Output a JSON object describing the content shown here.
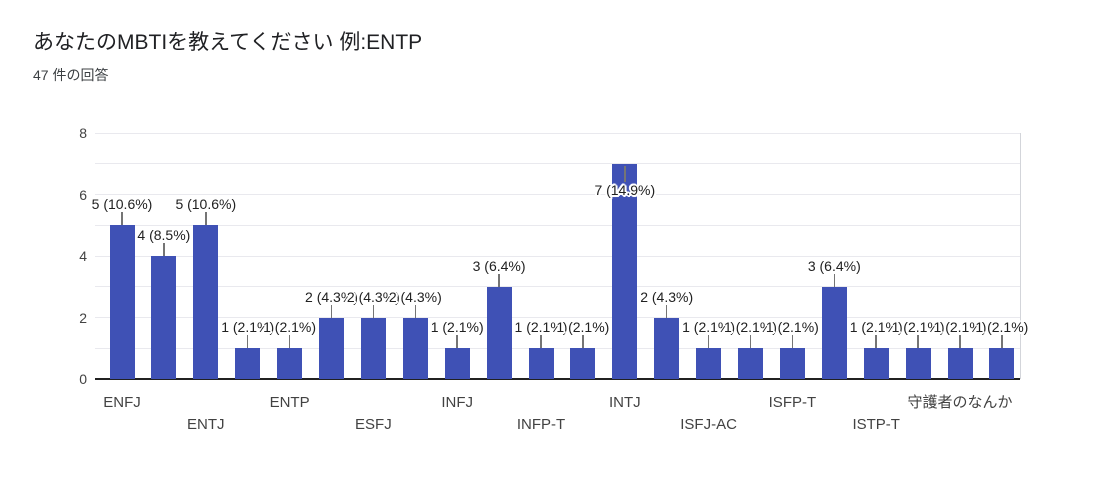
{
  "header": {
    "title": "あなたのMBTIを教えてください 例:ENTP",
    "subtitle": "47 件の回答"
  },
  "chart_data": {
    "type": "bar",
    "title": "あなたのMBTIを教えてください 例:ENTP",
    "subtitle": "47 件の回答",
    "total_responses": 47,
    "ylim": [
      0,
      8
    ],
    "y_ticks": [
      0,
      2,
      4,
      6,
      8
    ],
    "gridline_step": 1,
    "legend": "none",
    "x_tick_visible_labels": [
      "ENFJ",
      "ENTJ",
      "ENTP",
      "ESFJ",
      "INFJ",
      "INFP-T",
      "INTJ",
      "ISFJ-AC",
      "ISFP-T",
      "ISTP-T",
      "守護者のなんか"
    ],
    "bars": [
      {
        "value": 5,
        "annotation": "5 (10.6%)",
        "category": "ENFJ",
        "category_row": 1,
        "annotation_position": "above"
      },
      {
        "value": 4,
        "annotation": "4 (8.5%)",
        "category": null,
        "category_row": null,
        "annotation_position": "above"
      },
      {
        "value": 5,
        "annotation": "5 (10.6%)",
        "category": "ENTJ",
        "category_row": 2,
        "annotation_position": "above"
      },
      {
        "value": 1,
        "annotation": "1 (2.1%)",
        "category": null,
        "category_row": null,
        "annotation_position": "above"
      },
      {
        "value": 1,
        "annotation": "1 (2.1%)",
        "category": "ENTP",
        "category_row": 1,
        "annotation_position": "above"
      },
      {
        "value": 2,
        "annotation": "2 (4.3%)",
        "category": null,
        "category_row": null,
        "annotation_position": "above"
      },
      {
        "value": 2,
        "annotation": "2 (4.3%)",
        "category": "ESFJ",
        "category_row": 2,
        "annotation_position": "above"
      },
      {
        "value": 2,
        "annotation": "2 (4.3%)",
        "category": null,
        "category_row": null,
        "annotation_position": "above"
      },
      {
        "value": 1,
        "annotation": "1 (2.1%)",
        "category": "INFJ",
        "category_row": 1,
        "annotation_position": "above"
      },
      {
        "value": 3,
        "annotation": "3 (6.4%)",
        "category": null,
        "category_row": null,
        "annotation_position": "above"
      },
      {
        "value": 1,
        "annotation": "1 (2.1%)",
        "category": "INFP-T",
        "category_row": 2,
        "annotation_position": "above"
      },
      {
        "value": 1,
        "annotation": "1 (2.1%)",
        "category": null,
        "category_row": null,
        "annotation_position": "above"
      },
      {
        "value": 7,
        "annotation": "7 (14.9%)",
        "category": "INTJ",
        "category_row": 1,
        "annotation_position": "inside"
      },
      {
        "value": 2,
        "annotation": "2 (4.3%)",
        "category": null,
        "category_row": null,
        "annotation_position": "above"
      },
      {
        "value": 1,
        "annotation": "1 (2.1%)",
        "category": "ISFJ-AC",
        "category_row": 2,
        "annotation_position": "above"
      },
      {
        "value": 1,
        "annotation": "1 (2.1%)",
        "category": null,
        "category_row": null,
        "annotation_position": "above"
      },
      {
        "value": 1,
        "annotation": "1 (2.1%)",
        "category": "ISFP-T",
        "category_row": 1,
        "annotation_position": "above"
      },
      {
        "value": 3,
        "annotation": "3 (6.4%)",
        "category": null,
        "category_row": null,
        "annotation_position": "above"
      },
      {
        "value": 1,
        "annotation": "1 (2.1%)",
        "category": "ISTP-T",
        "category_row": 2,
        "annotation_position": "above"
      },
      {
        "value": 1,
        "annotation": "1 (2.1%)",
        "category": null,
        "category_row": null,
        "annotation_position": "above"
      },
      {
        "value": 1,
        "annotation": "1 (2.1%)",
        "category": "守護者のなんか",
        "category_row": 1,
        "annotation_position": "above"
      },
      {
        "value": 1,
        "annotation": "1 (2.1%)",
        "category": null,
        "category_row": null,
        "annotation_position": "above"
      }
    ],
    "colors": {
      "bar": "#3f51b5",
      "gridline": "#e9e9ee",
      "baseline": "#212121",
      "stem": "#757575",
      "annotation_text": "#212121",
      "axis_text": "#424242",
      "plot_right_border": "#d3d5da",
      "background": "#ffffff",
      "title_text": "#202124",
      "subtitle_text": "#3c4043"
    }
  }
}
